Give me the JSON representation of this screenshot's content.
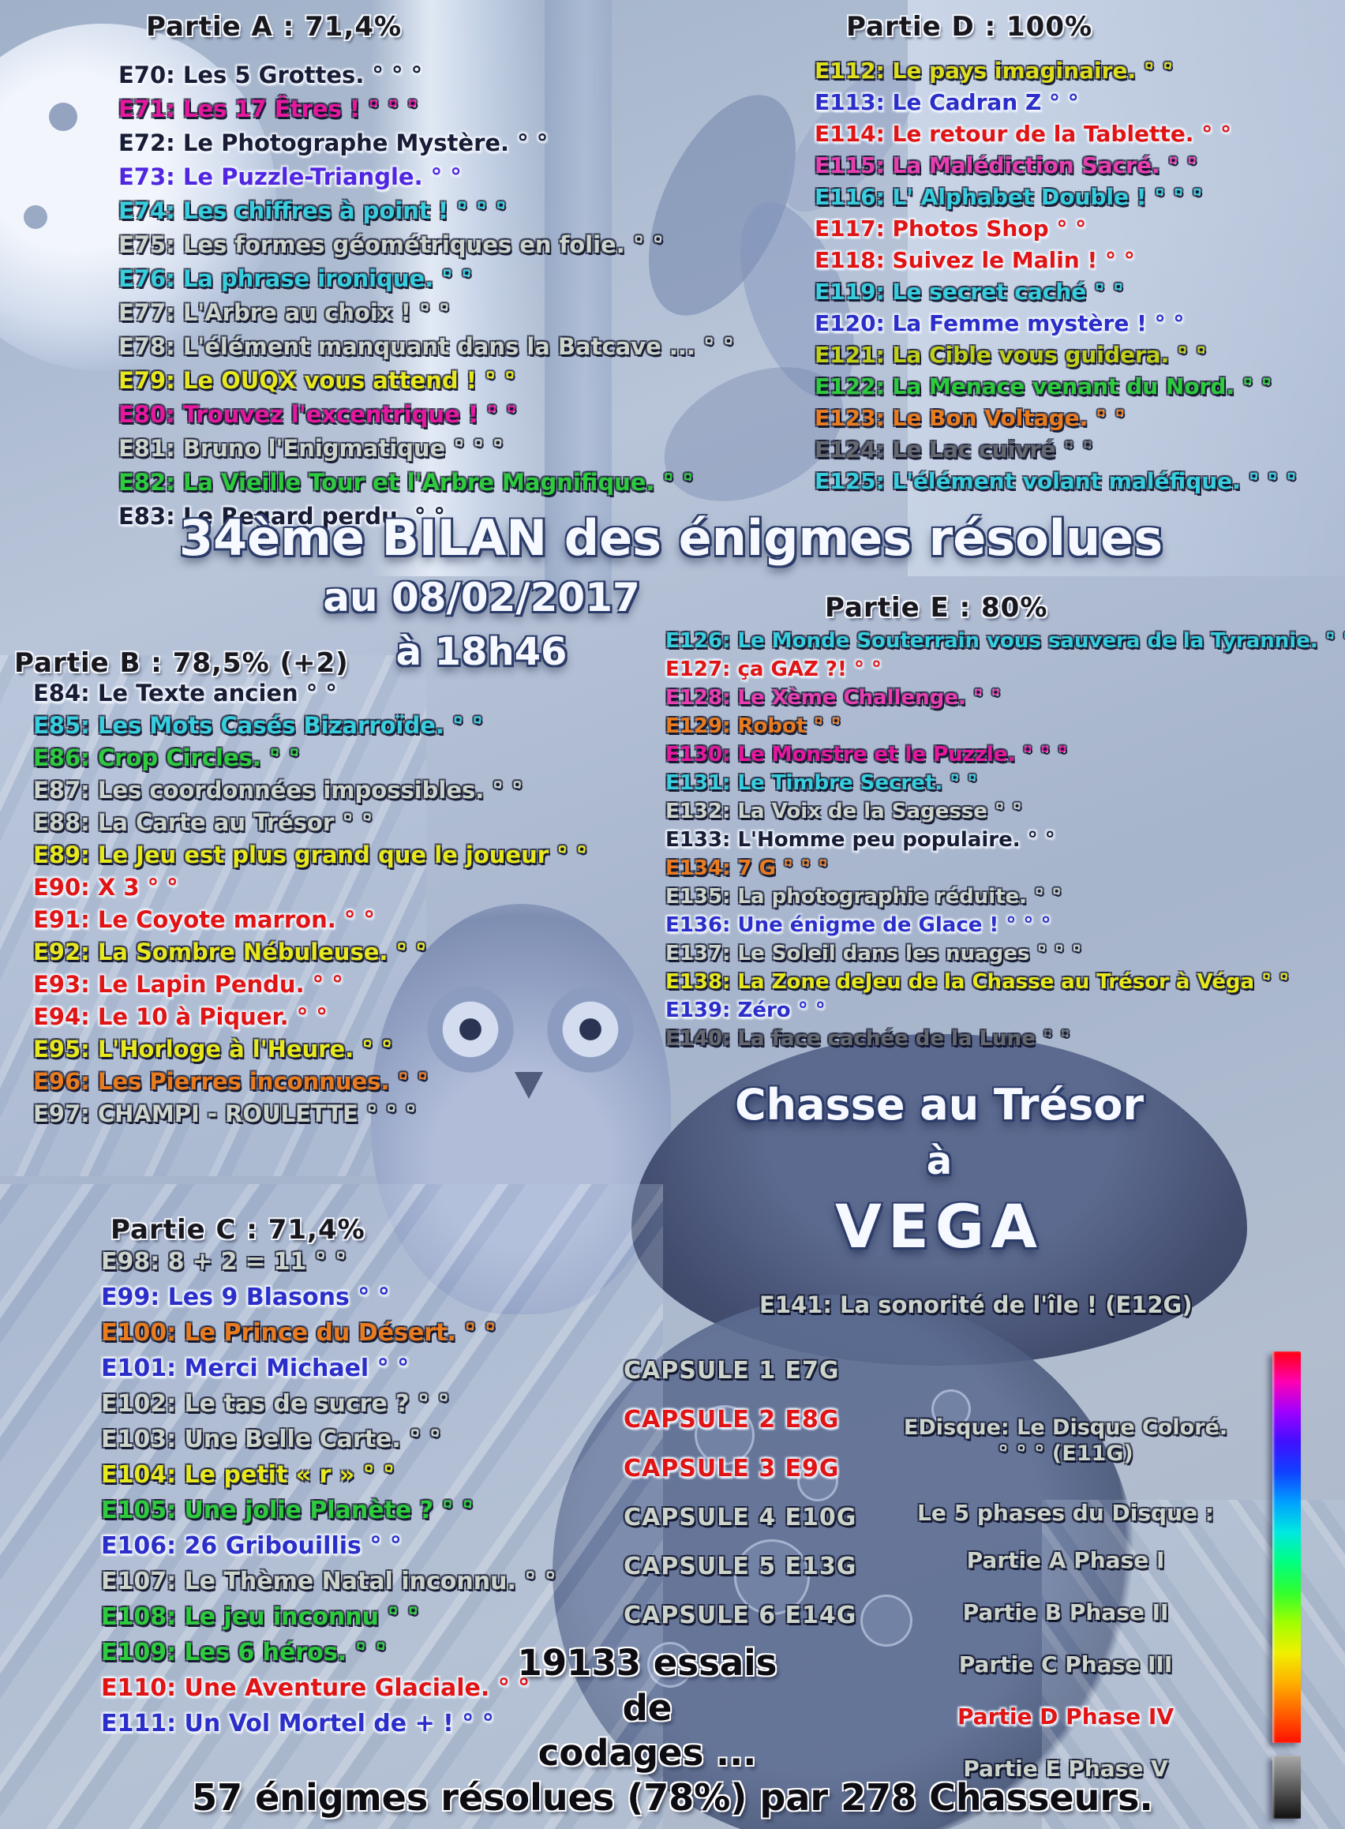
{
  "poster": {
    "title": "34ème BILAN des énigmes résolues",
    "date_line": "au 08/02/2017",
    "time_line": "à 18h46",
    "treasure_hunt": {
      "line1": "Chasse au Trésor",
      "line2": "à",
      "line3": "VEGA"
    },
    "attempts": {
      "line1": "19133 essais",
      "line2": "de",
      "line3": "codages ..."
    },
    "summary": "57 énigmes résolues (78%) par 278 Chasseurs."
  },
  "parts": {
    "a": {
      "header": "Partie A : 71,4%",
      "items": [
        {
          "num": "E70",
          "text": "Les 5 Grottes.",
          "dots": "° ° °",
          "color": "#181c34"
        },
        {
          "num": "E71",
          "text": "Les 17 Êtres !",
          "dots": "° ° °",
          "color": "#e5189e"
        },
        {
          "num": "E72",
          "text": "Le Photographe Mystère.",
          "dots": "° °",
          "color": "#181c34"
        },
        {
          "num": "E73",
          "text": "Le Puzzle-Triangle.",
          "dots": "° °",
          "color": "#5026e0"
        },
        {
          "num": "E74",
          "text": "Les chiffres à point !",
          "dots": "° ° °",
          "color": "#38cede"
        },
        {
          "num": "E75",
          "text": "Les formes géométriques en folie.",
          "dots": "° °",
          "color": "#cbd3cb"
        },
        {
          "num": "E76",
          "text": "La phrase ironique.",
          "dots": "° °",
          "color": "#38cede"
        },
        {
          "num": "E77",
          "text": "L'Arbre au choix !",
          "dots": "° °",
          "color": "#cbd3cb"
        },
        {
          "num": "E78",
          "text": "L'élément manquant dans la Batcave ...",
          "dots": "° °",
          "color": "#cbd3cb"
        },
        {
          "num": "E79",
          "text": "Le OUQX vous attend !",
          "dots": "° °",
          "color": "#e8e81f"
        },
        {
          "num": "E80",
          "text": "Trouvez l'excentrique !",
          "dots": "° °",
          "color": "#e5189e"
        },
        {
          "num": "E81",
          "text": "Bruno l'Enigmatique",
          "dots": "° ° °",
          "color": "#cbd3cb"
        },
        {
          "num": "E82",
          "text": "La Vieille Tour et l'Arbre Magnifique.",
          "dots": "° °",
          "color": "#2ecb3e"
        },
        {
          "num": "E83",
          "text": "Le Regard perdu.",
          "dots": "° °",
          "color": "#181c34"
        }
      ]
    },
    "b": {
      "header": "Partie B : 78,5% (+2)",
      "items": [
        {
          "num": "E84",
          "text": "Le Texte ancien",
          "dots": "° °",
          "color": "#181c34"
        },
        {
          "num": "E85",
          "text": "Les Mots Casés Bizarroïde.",
          "dots": "° °",
          "color": "#38cede"
        },
        {
          "num": "E86",
          "text": "Crop Circles.",
          "dots": "° °",
          "color": "#2ecb3e"
        },
        {
          "num": "E87",
          "text": "Les coordonnées impossibles.",
          "dots": "° °",
          "color": "#cbd3cb"
        },
        {
          "num": "E88",
          "text": "La Carte au Trésor",
          "dots": "° °",
          "color": "#cbd3cb"
        },
        {
          "num": "E89",
          "text": "Le Jeu est plus grand que le joueur",
          "dots": "° °",
          "color": "#e8e81f"
        },
        {
          "num": "E90",
          "text": "X 3",
          "dots": "° °",
          "color": "#e01414"
        },
        {
          "num": "E91",
          "text": "Le Coyote marron.",
          "dots": "° °",
          "color": "#e01414"
        },
        {
          "num": "E92",
          "text": "La Sombre Nébuleuse.",
          "dots": "° °",
          "color": "#e8e81f"
        },
        {
          "num": "E93",
          "text": "Le Lapin Pendu.",
          "dots": "° °",
          "color": "#e01414"
        },
        {
          "num": "E94",
          "text": "Le 10 à Piquer.",
          "dots": "° °",
          "color": "#e01414"
        },
        {
          "num": "E95",
          "text": "L'Horloge à l'Heure.",
          "dots": "° °",
          "color": "#e8e81f"
        },
        {
          "num": "E96",
          "text": "Les Pierres inconnues.",
          "dots": "° °",
          "color": "#ea7c20"
        },
        {
          "num": "E97",
          "text": "CHAMPI - ROULETTE",
          "dots": "° ° °",
          "color": "#cbd3cb"
        }
      ]
    },
    "c": {
      "header": "Partie C : 71,4%",
      "items": [
        {
          "num": "E98",
          "text": "8 + 2 = 11",
          "dots": "° °",
          "color": "#cbd3cb"
        },
        {
          "num": "E99",
          "text": "Les 9 Blasons",
          "dots": "° °",
          "color": "#2b2ec8"
        },
        {
          "num": "E100",
          "text": "Le Prince du Désert.",
          "dots": "° °",
          "color": "#ea7c20"
        },
        {
          "num": "E101",
          "text": "Merci Michael",
          "dots": "° °",
          "color": "#2b2ec8"
        },
        {
          "num": "E102",
          "text": "Le tas de sucre ?",
          "dots": "° °",
          "color": "#cbd3cb"
        },
        {
          "num": "E103",
          "text": "Une Belle Carte.",
          "dots": "° °",
          "color": "#cbd3cb"
        },
        {
          "num": "E104",
          "text": "Le petit « r »",
          "dots": "° °",
          "color": "#e8e81f"
        },
        {
          "num": "E105",
          "text": "Une jolie Planète ?",
          "dots": "° °",
          "color": "#2ecb3e"
        },
        {
          "num": "E106",
          "text": "26 Gribouillis",
          "dots": "° °",
          "color": "#2b2ec8"
        },
        {
          "num": "E107",
          "text": "Le Thème Natal inconnu.",
          "dots": "° °",
          "color": "#cbd3cb"
        },
        {
          "num": "E108",
          "text": "Le jeu inconnu",
          "dots": "° °",
          "color": "#2ecb3e"
        },
        {
          "num": "E109",
          "text": "Les 6 héros.",
          "dots": "° °",
          "color": "#2ecb3e"
        },
        {
          "num": "E110",
          "text": "Une Aventure Glaciale.",
          "dots": "° °",
          "color": "#e01414"
        },
        {
          "num": "E111",
          "text": "Un Vol Mortel de + !",
          "dots": "° °",
          "color": "#2b2ec8"
        }
      ]
    },
    "d": {
      "header": "Partie D : 100%",
      "items": [
        {
          "num": "E112",
          "text": "Le pays imaginaire.",
          "dots": "° °",
          "color": "#dede1c"
        },
        {
          "num": "E113",
          "text": "Le Cadran Z",
          "dots": "° °",
          "color": "#2b2ec8"
        },
        {
          "num": "E114",
          "text": "Le retour de la Tablette.",
          "dots": "° °",
          "color": "#e01414"
        },
        {
          "num": "E115",
          "text": "La Malédiction Sacré.",
          "dots": "° °",
          "color": "#e83fb0"
        },
        {
          "num": "E116",
          "text": "L' Alphabet Double !",
          "dots": "° ° °",
          "color": "#38cede"
        },
        {
          "num": "E117",
          "text": "Photos Shop",
          "dots": "° °",
          "color": "#e01414"
        },
        {
          "num": "E118",
          "text": "Suivez le Malin !",
          "dots": "° °",
          "color": "#e01414"
        },
        {
          "num": "E119",
          "text": "Le secret caché",
          "dots": "° °",
          "color": "#38cede"
        },
        {
          "num": "E120",
          "text": "La Femme mystère !",
          "dots": "° °",
          "color": "#2b2ec8"
        },
        {
          "num": "E121",
          "text": "La Cible vous guidera.",
          "dots": "° °",
          "color": "#c0d018"
        },
        {
          "num": "E122",
          "text": "La Menace venant du Nord.",
          "dots": "° °",
          "color": "#2ecb3e"
        },
        {
          "num": "E123",
          "text": "Le Bon Voltage.",
          "dots": "° °",
          "color": "#ea7c20"
        },
        {
          "num": "E124",
          "text": "Le Lac cuivré",
          "dots": "° °",
          "color": "#666a70"
        },
        {
          "num": "E125",
          "text": "L'élément volant maléfique.",
          "dots": "° ° °",
          "color": "#38cede"
        }
      ]
    },
    "e": {
      "header": "Partie E : 80%",
      "items": [
        {
          "num": "E126",
          "text": "Le Monde Souterrain vous sauvera de la Tyrannie.",
          "dots": "° °",
          "color": "#38cede"
        },
        {
          "num": "E127",
          "text": "ça GAZ ?!",
          "dots": "° °",
          "color": "#e01414"
        },
        {
          "num": "E128",
          "text": "Le Xème Challenge.",
          "dots": "° °",
          "color": "#e83fb0"
        },
        {
          "num": "E129",
          "text": "Robot",
          "dots": "° °",
          "color": "#ea7c20"
        },
        {
          "num": "E130",
          "text": "Le Monstre et le Puzzle.",
          "dots": "° ° °",
          "color": "#e5189e"
        },
        {
          "num": "E131",
          "text": "Le Timbre Secret.",
          "dots": "° °",
          "color": "#38cede"
        },
        {
          "num": "E132",
          "text": "La Voix de la Sagesse",
          "dots": "° °",
          "color": "#cbd3cb"
        },
        {
          "num": "E133",
          "text": "L'Homme peu populaire.",
          "dots": "° °",
          "color": "#181c34"
        },
        {
          "num": "E134",
          "text": "7 G",
          "dots": "° ° °",
          "color": "#ea7c20"
        },
        {
          "num": "E135",
          "text": "La photographie réduite.",
          "dots": "° °",
          "color": "#cbd3cb"
        },
        {
          "num": "E136",
          "text": "Une énigme de Glace !",
          "dots": "° ° °",
          "color": "#2b2ec8"
        },
        {
          "num": "E137",
          "text": "Le Soleil dans les nuages",
          "dots": "° ° °",
          "color": "#cbd3cb"
        },
        {
          "num": "E138",
          "text": "La Zone deJeu de la Chasse au Trésor à Véga",
          "dots": "° °",
          "color": "#e8e81f"
        },
        {
          "num": "E139",
          "text": "Zéro",
          "dots": "° °",
          "color": "#2b2ec8"
        },
        {
          "num": "E140",
          "text": "La face cachée de la Lune",
          "dots": "° °",
          "color": "#666a70"
        }
      ]
    }
  },
  "extra": {
    "e141_label": "E141: La sonorité de l'île ! (E12G)",
    "capsules": [
      {
        "label": "CAPSULE 1 E7G",
        "color": "#cbd3cb"
      },
      {
        "label": "CAPSULE 2 E8G",
        "color": "#e01414"
      },
      {
        "label": "CAPSULE 3 E9G",
        "color": "#e01414"
      },
      {
        "label": "CAPSULE 4 E10G",
        "color": "#cbd3cb"
      },
      {
        "label": "CAPSULE 5 E13G",
        "color": "#cbd3cb"
      },
      {
        "label": "CAPSULE 6 E14G",
        "color": "#cbd3cb"
      }
    ],
    "disque": {
      "line1": "EDisque: Le Disque Coloré.",
      "line2": "° ° ° (E11G)",
      "phases_title": "Le 5 phases du Disque :",
      "phases": [
        {
          "label": "Partie A Phase I",
          "color": "#cbd3cb"
        },
        {
          "label": "Partie B Phase II",
          "color": "#cbd3cb"
        },
        {
          "label": "Partie C Phase III",
          "color": "#cbd3cb"
        },
        {
          "label": "Partie D Phase IV",
          "color": "#e01414"
        },
        {
          "label": "Partie E Phase V",
          "color": "#cbd3cb"
        }
      ]
    }
  },
  "colorbar": {
    "stops": [
      "#ff0010",
      "#ff00b0",
      "#a000ff",
      "#4010ff",
      "#1040ff",
      "#00a0ff",
      "#00e8e0",
      "#00ff80",
      "#30ff30",
      "#a0ff00",
      "#f0f000",
      "#ffb000",
      "#ff6000",
      "#ff1000"
    ],
    "end_block": [
      "#a8a8a8",
      "#101010"
    ]
  }
}
